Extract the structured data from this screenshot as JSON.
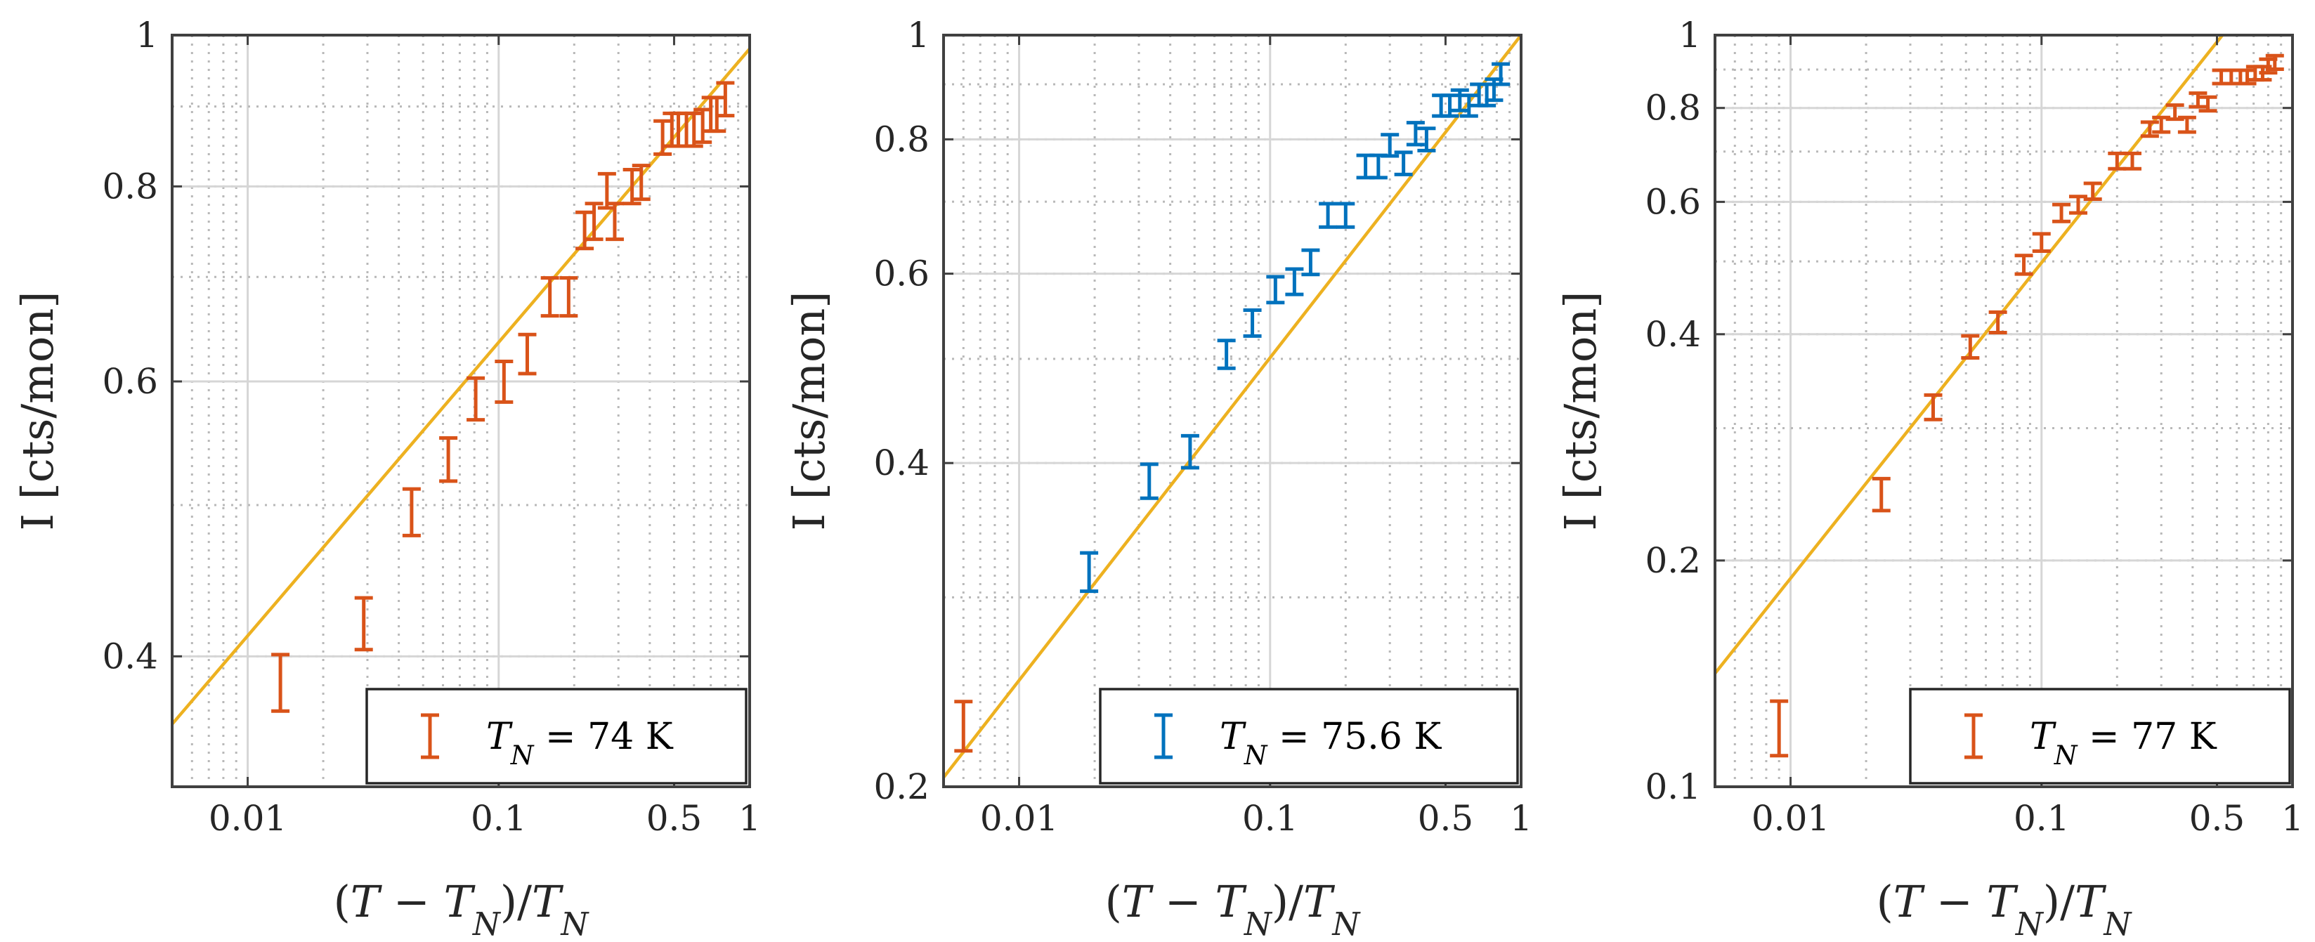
{
  "chart_data": [
    {
      "type": "scatter",
      "xscale": "log",
      "yscale": "log",
      "xlim": [
        0.005,
        1
      ],
      "ylim": [
        0.33,
        1
      ],
      "xticks": [
        0.01,
        0.1,
        0.5,
        1
      ],
      "xtick_labels": [
        "0.01",
        "0.1",
        "0.5",
        "1"
      ],
      "yticks": [
        0.4,
        0.6,
        0.8,
        1
      ],
      "ytick_labels": [
        "0.4",
        "0.6",
        "0.8",
        "1"
      ],
      "xlabel": "(T − T_N)/T_N",
      "ylabel": "I [cts/mon]",
      "grid": true,
      "legend_position": "bottom-right",
      "legend_label": "T_N = 74 K",
      "marker_color": "#D95319",
      "fit_color": "#EDB120",
      "fit": {
        "A": 0.98,
        "beta": 0.188
      },
      "series": [
        {
          "x": [
            0.0135,
            0.029,
            0.045,
            0.063,
            0.081,
            0.105,
            0.13,
            0.16,
            0.19,
            0.22,
            0.24,
            0.27,
            0.29,
            0.34,
            0.37,
            0.45,
            0.49,
            0.52,
            0.56,
            0.6,
            0.65,
            0.7,
            0.74,
            0.8
          ],
          "y": [
            0.385,
            0.42,
            0.495,
            0.535,
            0.585,
            0.6,
            0.625,
            0.68,
            0.68,
            0.75,
            0.76,
            0.795,
            0.76,
            0.8,
            0.805,
            0.86,
            0.87,
            0.87,
            0.87,
            0.87,
            0.875,
            0.89,
            0.89,
            0.91
          ],
          "yerr": [
            0.016,
            0.016,
            0.017,
            0.017,
            0.018,
            0.018,
            0.018,
            0.019,
            0.019,
            0.02,
            0.02,
            0.02,
            0.02,
            0.02,
            0.02,
            0.021,
            0.021,
            0.021,
            0.021,
            0.021,
            0.021,
            0.022,
            0.022,
            0.022
          ]
        }
      ]
    },
    {
      "type": "scatter",
      "xscale": "log",
      "yscale": "log",
      "xlim": [
        0.005,
        1
      ],
      "ylim": [
        0.2,
        1
      ],
      "xticks": [
        0.01,
        0.1,
        0.5,
        1
      ],
      "xtick_labels": [
        "0.01",
        "0.1",
        "0.5",
        "1"
      ],
      "yticks": [
        0.2,
        0.4,
        0.6,
        0.8,
        1
      ],
      "ytick_labels": [
        "0.2",
        "0.4",
        "0.6",
        "0.8",
        "1"
      ],
      "xlabel": "(T − T_N)/T_N",
      "ylabel": "I [cts/mon]",
      "grid": true,
      "legend_position": "bottom-right",
      "legend_label": "T_N = 75.6 K",
      "marker_color": "#0072BD",
      "first_point_color": "#D95319",
      "fit_color": "#EDB120",
      "fit": {
        "A": 1.0,
        "beta": 0.3
      },
      "series": [
        {
          "x": [
            0.006,
            0.019,
            0.033,
            0.048,
            0.067,
            0.085,
            0.105,
            0.125,
            0.145,
            0.17,
            0.2,
            0.24,
            0.27,
            0.3,
            0.34,
            0.38,
            0.42,
            0.48,
            0.52,
            0.57,
            0.62,
            0.68,
            0.73,
            0.78,
            0.83
          ],
          "y": [
            0.228,
            0.317,
            0.385,
            0.41,
            0.505,
            0.54,
            0.58,
            0.59,
            0.615,
            0.68,
            0.68,
            0.755,
            0.755,
            0.79,
            0.76,
            0.81,
            0.8,
            0.86,
            0.86,
            0.87,
            0.86,
            0.88,
            0.88,
            0.89,
            0.92
          ],
          "yerr": [
            0.012,
            0.013,
            0.014,
            0.014,
            0.015,
            0.015,
            0.016,
            0.016,
            0.016,
            0.017,
            0.017,
            0.018,
            0.018,
            0.018,
            0.018,
            0.019,
            0.019,
            0.019,
            0.019,
            0.019,
            0.019,
            0.02,
            0.02,
            0.02,
            0.02
          ]
        }
      ]
    },
    {
      "type": "scatter",
      "xscale": "log",
      "yscale": "log",
      "xlim": [
        0.005,
        1
      ],
      "ylim": [
        0.1,
        1
      ],
      "xticks": [
        0.01,
        0.1,
        0.5,
        1
      ],
      "xtick_labels": [
        "0.01",
        "0.1",
        "0.5",
        "1"
      ],
      "yticks": [
        0.1,
        0.2,
        0.4,
        0.6,
        0.8,
        1
      ],
      "ytick_labels": [
        "0.1",
        "0.2",
        "0.4",
        "0.6",
        "0.8",
        "1"
      ],
      "xlabel": "(T − T_N)/T_N",
      "ylabel": "I [cts/mon]",
      "grid": true,
      "legend_position": "bottom-right",
      "legend_label": "T_N = 77 K",
      "marker_color": "#D95319",
      "fit_color": "#EDB120",
      "fit": {
        "A": 1.31,
        "beta": 0.42
      },
      "series": [
        {
          "x": [
            0.009,
            0.023,
            0.037,
            0.052,
            0.067,
            0.085,
            0.1,
            0.12,
            0.14,
            0.16,
            0.2,
            0.23,
            0.27,
            0.3,
            0.34,
            0.38,
            0.42,
            0.46,
            0.52,
            0.57,
            0.62,
            0.66,
            0.71,
            0.76,
            0.8,
            0.85
          ],
          "y": [
            0.12,
            0.245,
            0.32,
            0.385,
            0.415,
            0.495,
            0.53,
            0.58,
            0.595,
            0.62,
            0.68,
            0.68,
            0.75,
            0.76,
            0.79,
            0.76,
            0.82,
            0.81,
            0.88,
            0.88,
            0.88,
            0.88,
            0.89,
            0.89,
            0.91,
            0.92
          ],
          "yerr": [
            0.01,
            0.012,
            0.012,
            0.013,
            0.013,
            0.014,
            0.014,
            0.015,
            0.015,
            0.015,
            0.016,
            0.016,
            0.016,
            0.017,
            0.017,
            0.017,
            0.017,
            0.017,
            0.018,
            0.018,
            0.018,
            0.018,
            0.018,
            0.018,
            0.019,
            0.019
          ]
        }
      ]
    }
  ]
}
